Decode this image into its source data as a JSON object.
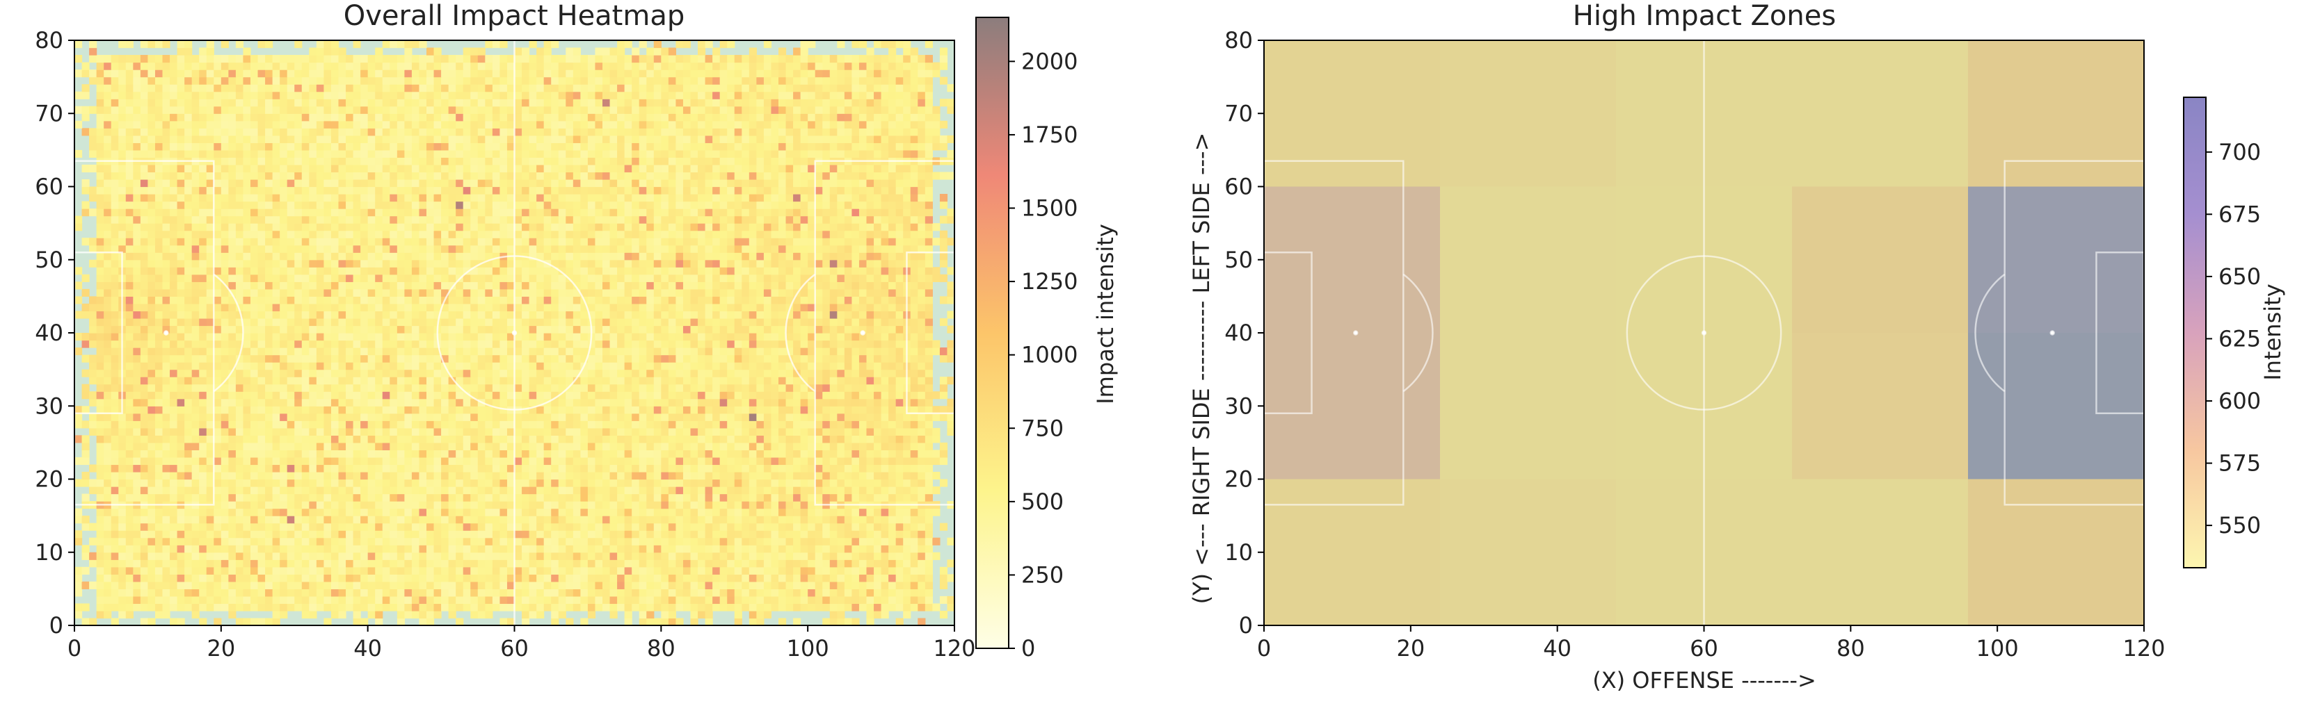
{
  "chart_data": [
    {
      "type": "heatmap",
      "title": "Overall Impact Heatmap",
      "xlabel": "",
      "ylabel": "",
      "xlim": [
        0,
        120
      ],
      "ylim": [
        0,
        80
      ],
      "xticks": [
        "0",
        "20",
        "40",
        "60",
        "80",
        "100",
        "120"
      ],
      "yticks": [
        "0",
        "10",
        "20",
        "30",
        "40",
        "50",
        "60",
        "70",
        "80"
      ],
      "grid": false,
      "cell_size": 1,
      "colormap": [
        "#fefee6",
        "#fdf48c",
        "#fcc56a",
        "#ef8877",
        "#8c7d7d"
      ],
      "colorbar": {
        "label": "Impact intensity",
        "range": [
          0,
          2150
        ],
        "ticks": [
          "0",
          "250",
          "500",
          "750",
          "1000",
          "1250",
          "1500",
          "1750",
          "2000"
        ]
      },
      "pitch_background": "#cfe6d6"
    },
    {
      "type": "heatmap",
      "title": "High Impact Zones",
      "xlabel": "(X) OFFENSE ------->",
      "ylabel": "(Y) <--- RIGHT SIDE ---------- LEFT SIDE --->",
      "xlim": [
        0,
        120
      ],
      "ylim": [
        0,
        80
      ],
      "xticks": [
        "0",
        "20",
        "40",
        "60",
        "80",
        "100",
        "120"
      ],
      "yticks": [
        "0",
        "10",
        "20",
        "30",
        "40",
        "50",
        "60",
        "70",
        "80"
      ],
      "grid": false,
      "x_bins": [
        0,
        24,
        48,
        72,
        96,
        120
      ],
      "y_bins": [
        0,
        20,
        40,
        60,
        80
      ],
      "values_rows_top_to_bottom": [
        [
          568,
          566,
          560,
          560,
          580
        ],
        [
          612,
          560,
          558,
          578,
          706
        ],
        [
          612,
          560,
          558,
          575,
          718
        ],
        [
          568,
          564,
          560,
          560,
          580
        ]
      ],
      "colormap": [
        "#fdf6b0",
        "#f7c7a0",
        "#d8a2bc",
        "#a58fd0",
        "#8a85c4"
      ],
      "colorbar": {
        "label": "Intensity",
        "range": [
          533,
          722
        ],
        "ticks": [
          "550",
          "575",
          "600",
          "625",
          "650",
          "675",
          "700"
        ]
      },
      "underlay_color": "#aad36a"
    }
  ]
}
